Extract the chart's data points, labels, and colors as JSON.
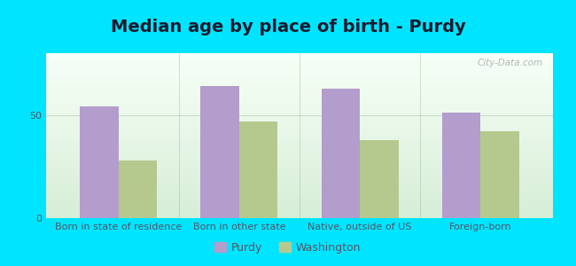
{
  "title": "Median age by place of birth - Purdy",
  "categories": [
    "Born in state of residence",
    "Born in other state",
    "Native, outside of US",
    "Foreign-born"
  ],
  "purdy_values": [
    54,
    64,
    63,
    51
  ],
  "washington_values": [
    28,
    47,
    38,
    42
  ],
  "purdy_color": "#b39dcc",
  "washington_color": "#b5c98e",
  "outer_bg": "#00e5ff",
  "plot_bg_top": "#f0f9f0",
  "plot_bg_bottom": "#d8eed8",
  "ylim": [
    0,
    80
  ],
  "yticks": [
    0,
    50
  ],
  "bar_width": 0.32,
  "legend_labels": [
    "Purdy",
    "Washington"
  ],
  "watermark": "City-Data.com",
  "title_fontsize": 14,
  "tick_fontsize": 8,
  "legend_fontsize": 9,
  "title_color": "#1a1a2e",
  "tick_color": "#555566"
}
